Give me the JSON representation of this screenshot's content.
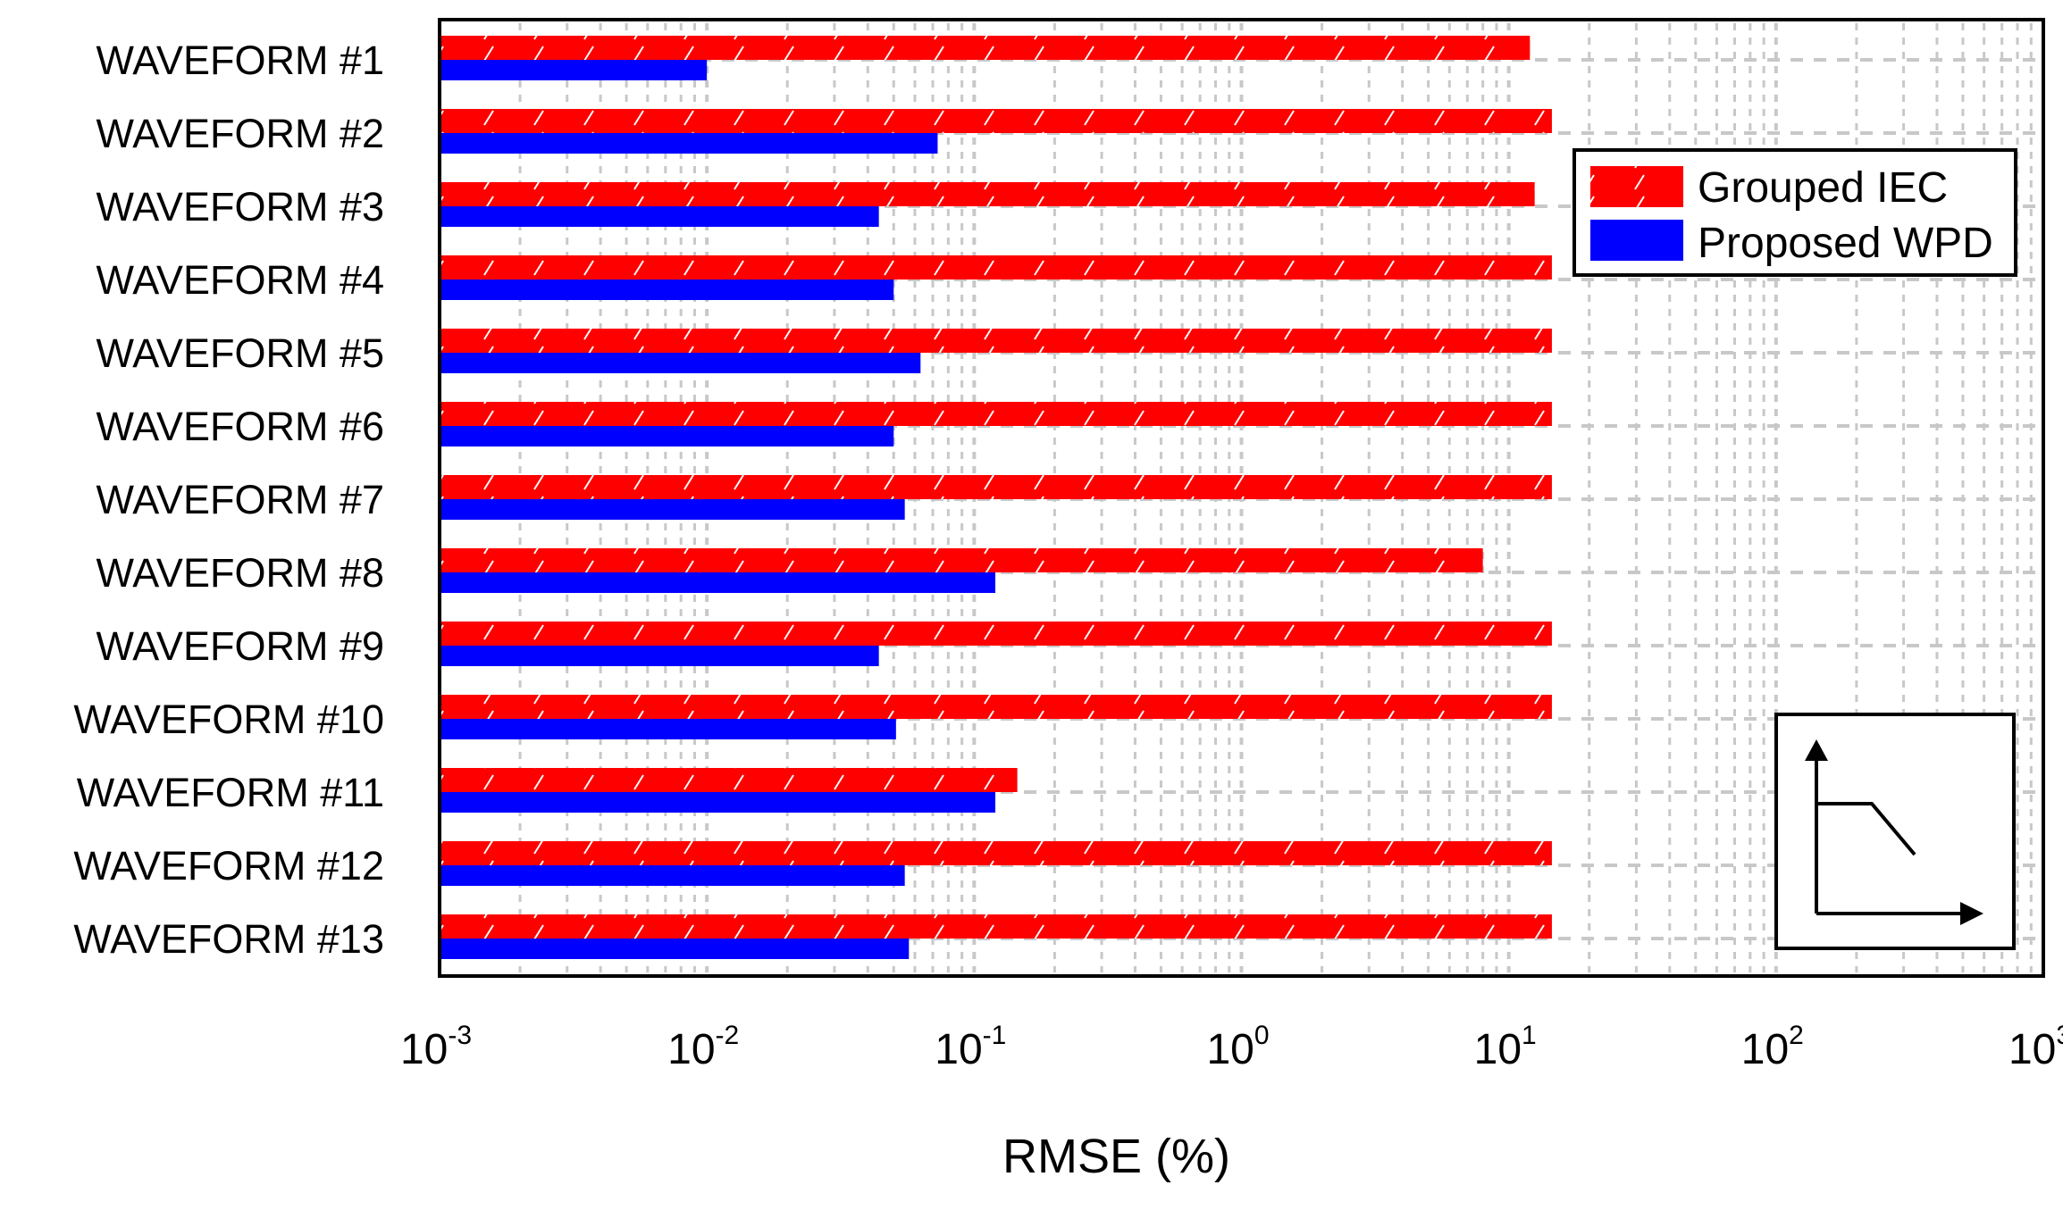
{
  "chart_data": {
    "type": "bar",
    "orientation": "horizontal",
    "x_scale": "log",
    "xlim": [
      0.001,
      1000
    ],
    "xlabel": "RMSE (%)",
    "x_ticks": [
      {
        "base": "10",
        "exp": "-3"
      },
      {
        "base": "10",
        "exp": "-2"
      },
      {
        "base": "10",
        "exp": "-1"
      },
      {
        "base": "10",
        "exp": "0"
      },
      {
        "base": "10",
        "exp": "1"
      },
      {
        "base": "10",
        "exp": "2"
      },
      {
        "base": "10",
        "exp": "3"
      }
    ],
    "grid": true,
    "legend_position": "top-right",
    "categories": [
      "WAVEFORM #1",
      "WAVEFORM #2",
      "WAVEFORM #3",
      "WAVEFORM #4",
      "WAVEFORM #5",
      "WAVEFORM #6",
      "WAVEFORM #7",
      "WAVEFORM #8",
      "WAVEFORM #9",
      "WAVEFORM #10",
      "WAVEFORM #11",
      "WAVEFORM #12",
      "WAVEFORM #13"
    ],
    "series": [
      {
        "name": "Grouped IEC",
        "color": "#ff0000",
        "pattern": "hatched",
        "values": [
          12,
          14.5,
          12.5,
          14.5,
          14.5,
          14.5,
          14.5,
          8,
          14.5,
          14.5,
          0.145,
          14.5,
          14.5
        ]
      },
      {
        "name": "Proposed WPD",
        "color": "#0000ff",
        "pattern": "solid",
        "values": [
          0.01,
          0.073,
          0.044,
          0.05,
          0.063,
          0.05,
          0.055,
          0.12,
          0.044,
          0.051,
          0.12,
          0.055,
          0.057
        ]
      }
    ]
  }
}
